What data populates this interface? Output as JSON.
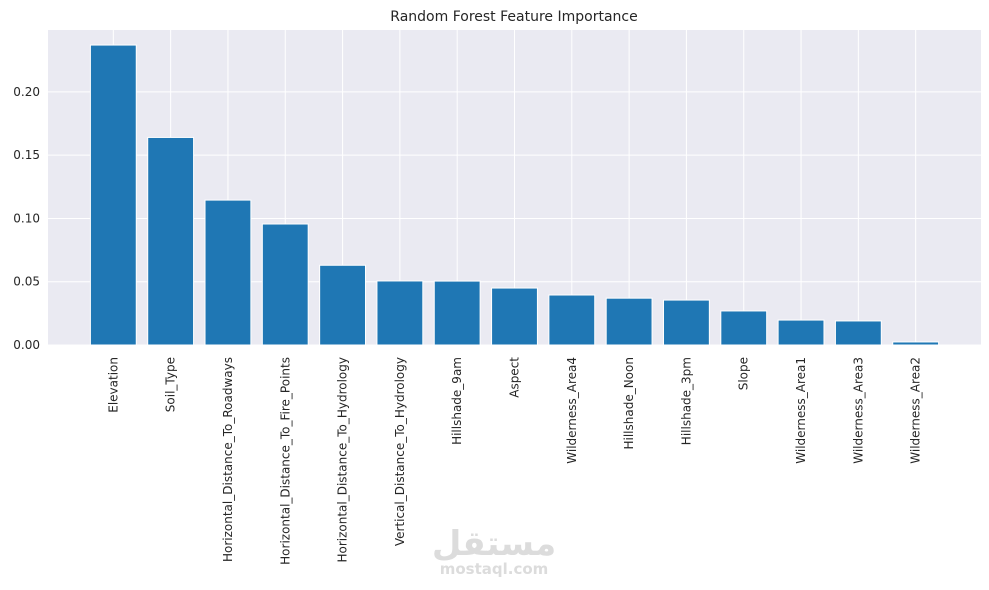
{
  "chart_data": {
    "type": "bar",
    "title": "Random Forest Feature Importance",
    "categories": [
      "Elevation",
      "Soil_Type",
      "Horizontal_Distance_To_Roadways",
      "Horizontal_Distance_To_Fire_Points",
      "Horizontal_Distance_To_Hydrology",
      "Vertical_Distance_To_Hydrology",
      "Hillshade_9am",
      "Aspect",
      "Wilderness_Area4",
      "Hillshade_Noon",
      "Hillshade_3pm",
      "Slope",
      "Wilderness_Area1",
      "Wilderness_Area3",
      "Wilderness_Area2"
    ],
    "values": [
      0.237,
      0.164,
      0.1145,
      0.0956,
      0.063,
      0.0506,
      0.0505,
      0.045,
      0.0395,
      0.037,
      0.0355,
      0.0269,
      0.0197,
      0.019,
      0.0024
    ],
    "color": "#1f77b4",
    "ylim": [
      0,
      0.2489
    ],
    "yticks": [
      {
        "value": 0,
        "label": "0.00"
      },
      {
        "value": 0.05,
        "label": "0.05"
      },
      {
        "value": 0.1,
        "label": "0.10"
      },
      {
        "value": 0.15,
        "label": "0.15"
      },
      {
        "value": 0.2,
        "label": "0.20"
      }
    ],
    "grid": true
  },
  "watermark": {
    "arabic": "مستقل",
    "latin": "mostaql.com"
  }
}
